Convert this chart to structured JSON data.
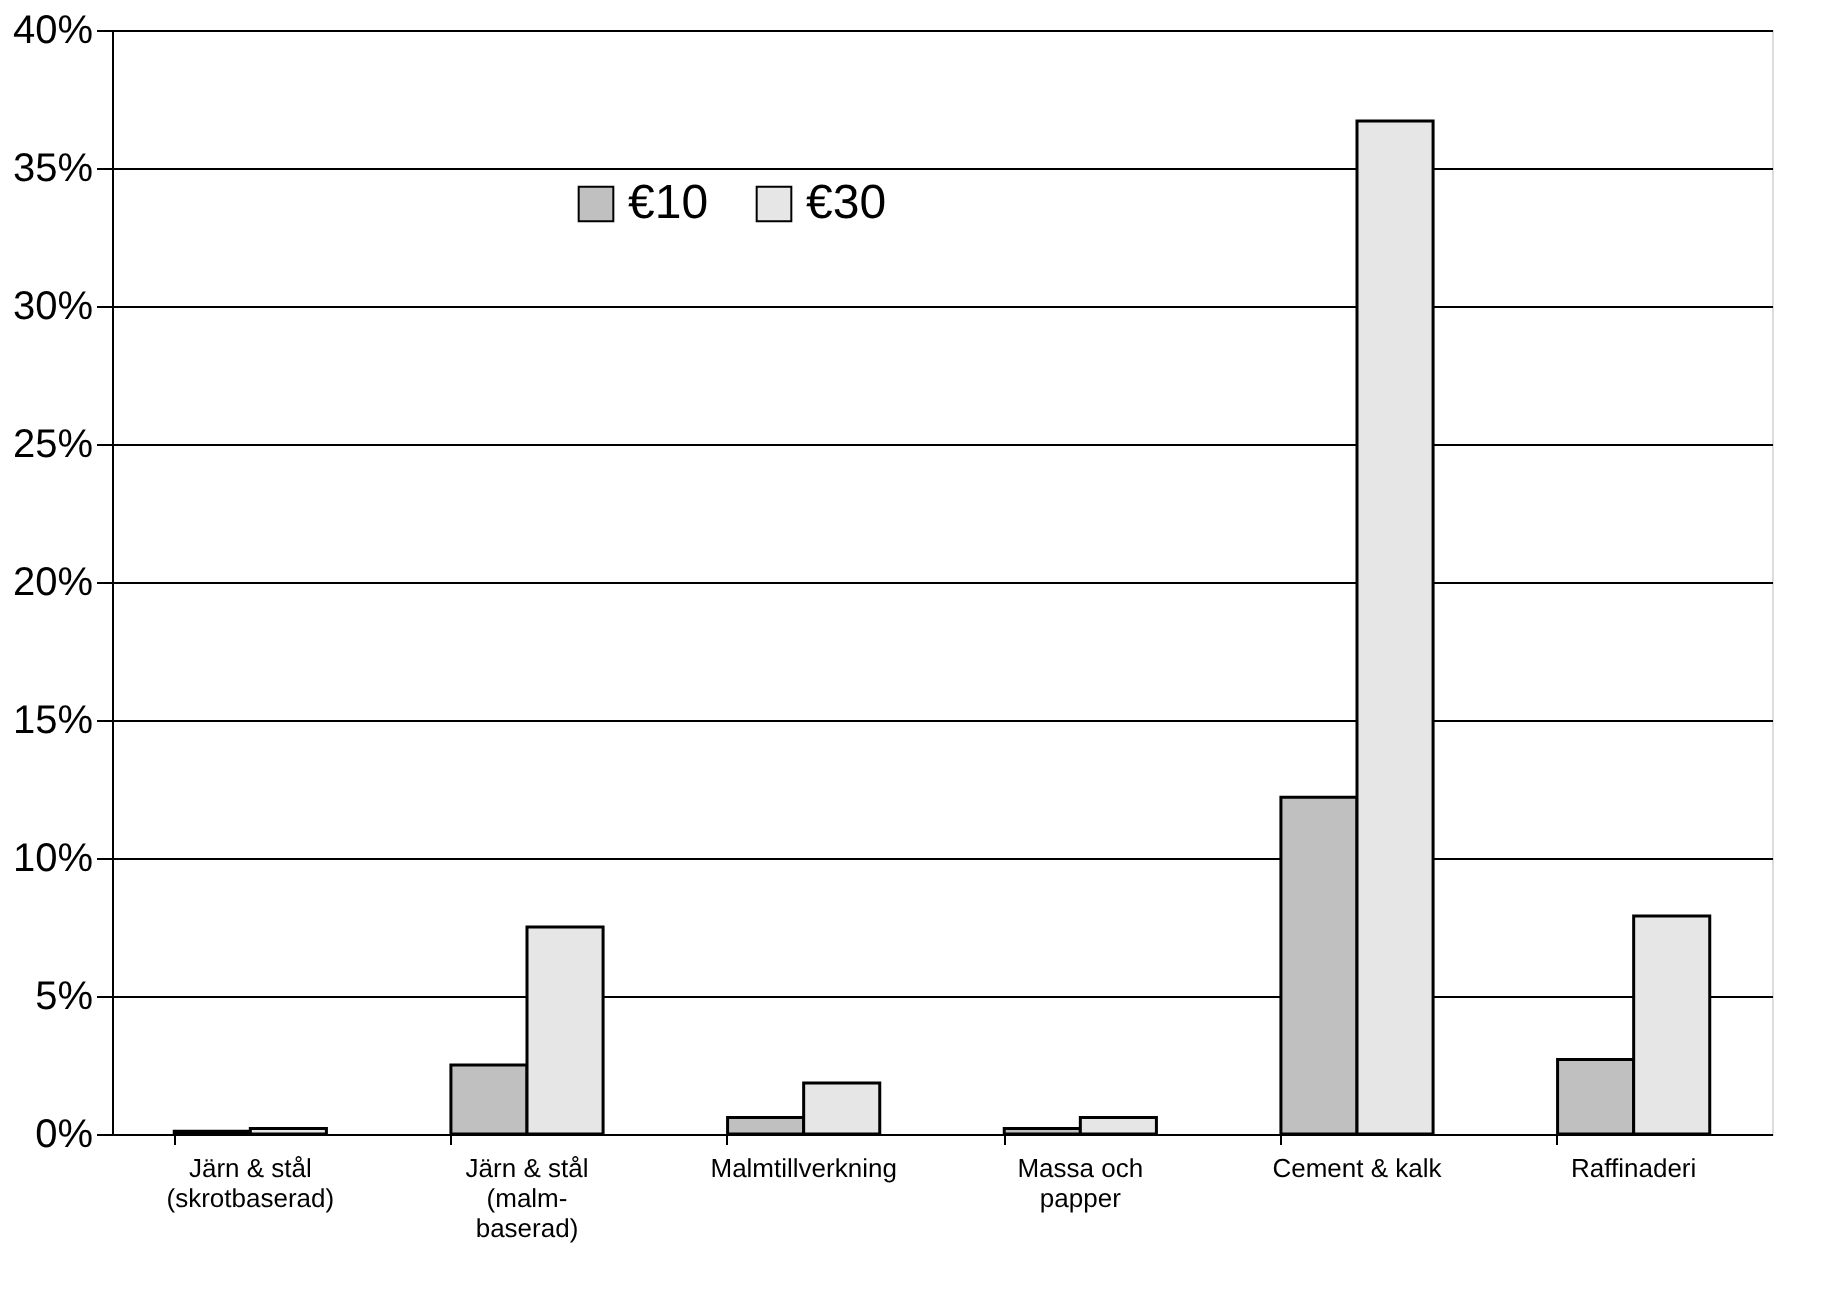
{
  "chart_data": {
    "type": "bar",
    "categories": [
      "Järn & stål\n(skrotbaserad)",
      "Järn & stål\n(malm-\nbaserad)",
      "Malmtillverkning",
      "Massa och\npapper",
      "Cement & kalk",
      "Raffinaderi"
    ],
    "series": [
      {
        "name": "€10",
        "color": "#c0c0c0",
        "values": [
          0.1,
          2.5,
          0.6,
          0.2,
          12.2,
          2.7
        ]
      },
      {
        "name": "€30",
        "color": "#e6e6e6",
        "values": [
          0.2,
          7.5,
          1.85,
          0.6,
          36.7,
          7.9
        ]
      }
    ],
    "ylim": [
      0,
      40
    ],
    "yticks": [
      {
        "value": 0,
        "label": "0%"
      },
      {
        "value": 5,
        "label": "5%"
      },
      {
        "value": 10,
        "label": "10%"
      },
      {
        "value": 15,
        "label": "15%"
      },
      {
        "value": 20,
        "label": "20%"
      },
      {
        "value": 25,
        "label": "25%"
      },
      {
        "value": 30,
        "label": "30%"
      },
      {
        "value": 35,
        "label": "35%"
      },
      {
        "value": 40,
        "label": "40%"
      }
    ],
    "grid": "y",
    "legend": "top"
  }
}
